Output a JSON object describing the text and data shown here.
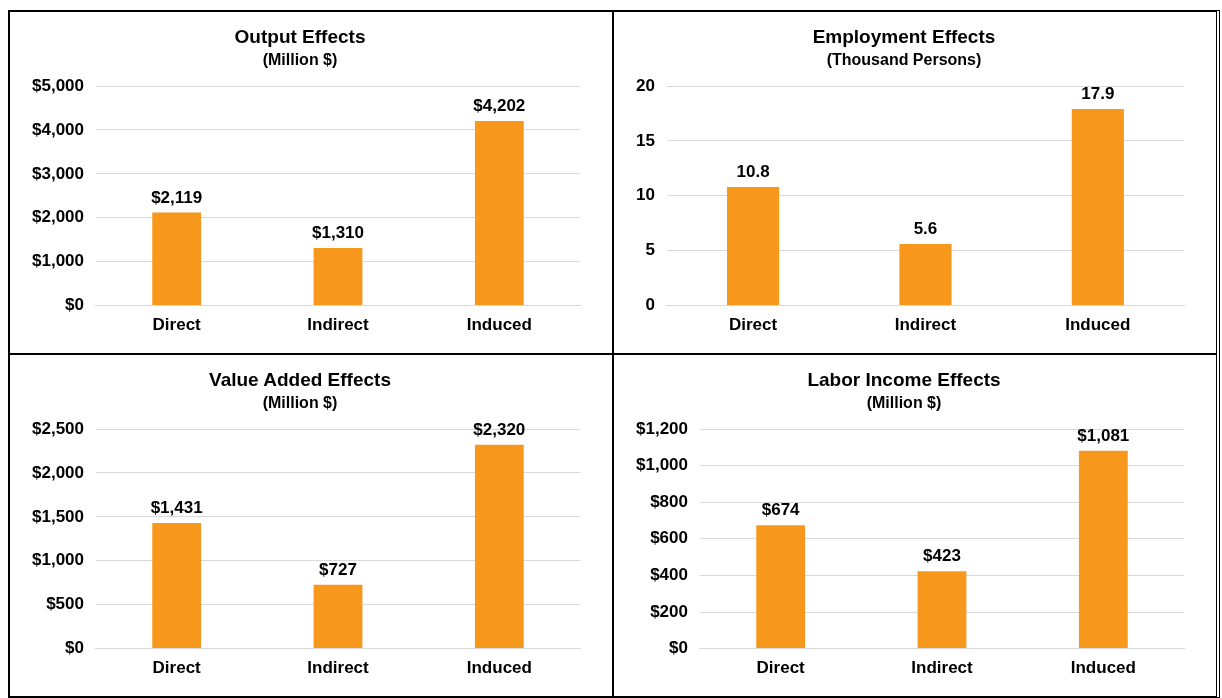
{
  "chart_data": [
    {
      "type": "bar",
      "title": "Output Effects",
      "subtitle": "(Million $)",
      "categories": [
        "Direct",
        "Indirect",
        "Induced"
      ],
      "values": [
        2119,
        1310,
        4202
      ],
      "value_labels": [
        "$2,119",
        "$1,310",
        "$4,202"
      ],
      "color": "#f7981d",
      "ylim": [
        0,
        5000
      ],
      "yticks": [
        {
          "value": 0,
          "label": "$0"
        },
        {
          "value": 1000,
          "label": "$1,000"
        },
        {
          "value": 2000,
          "label": "$2,000"
        },
        {
          "value": 3000,
          "label": "$3,000"
        },
        {
          "value": 4000,
          "label": "$4,000"
        },
        {
          "value": 5000,
          "label": "$5,000"
        }
      ],
      "grid": "y",
      "legend": false
    },
    {
      "type": "bar",
      "title": "Employment Effects",
      "subtitle": "(Thousand Persons)",
      "categories": [
        "Direct",
        "Indirect",
        "Induced"
      ],
      "values": [
        10.8,
        5.6,
        17.9
      ],
      "data_labels": true,
      "color": "#f7981d",
      "ylim": [
        0,
        20
      ],
      "yticks": [
        0,
        5,
        10,
        15,
        20
      ],
      "grid": "y",
      "legend": false
    },
    {
      "type": "bar",
      "title": "Value Added Effects",
      "subtitle": "(Million $)",
      "categories": [
        "Direct",
        "Indirect",
        "Induced"
      ],
      "values": [
        1431,
        727,
        2320
      ],
      "value_labels": [
        "$1,431",
        "$727",
        "$2,320"
      ],
      "color": "#f7981d",
      "ylim": [
        0,
        2500
      ],
      "yticks": [
        {
          "value": 0,
          "label": "$0"
        },
        {
          "value": 500,
          "label": "$500"
        },
        {
          "value": 1000,
          "label": "$1,000"
        },
        {
          "value": 1500,
          "label": "$1,500"
        },
        {
          "value": 2000,
          "label": "$2,000"
        },
        {
          "value": 2500,
          "label": "$2,500"
        }
      ],
      "grid": "y",
      "legend": false
    },
    {
      "type": "bar",
      "title": "Labor Income Effects",
      "subtitle": "(Million $)",
      "categories": [
        "Direct",
        "Indirect",
        "Induced"
      ],
      "values": [
        674,
        423,
        1081
      ],
      "value_labels": [
        "$674",
        "$423",
        "$1,081"
      ],
      "color": "#f7981d",
      "ylim": [
        0,
        1200
      ],
      "yticks": [
        {
          "value": 0,
          "label": "$0"
        },
        {
          "value": 200,
          "label": "$200"
        },
        {
          "value": 400,
          "label": "$400"
        },
        {
          "value": 600,
          "label": "$600"
        },
        {
          "value": 800,
          "label": "$800"
        },
        {
          "value": 1000,
          "label": "$1,000"
        },
        {
          "value": 1200,
          "label": "$1,200"
        }
      ],
      "grid": "y",
      "legend": false
    }
  ]
}
